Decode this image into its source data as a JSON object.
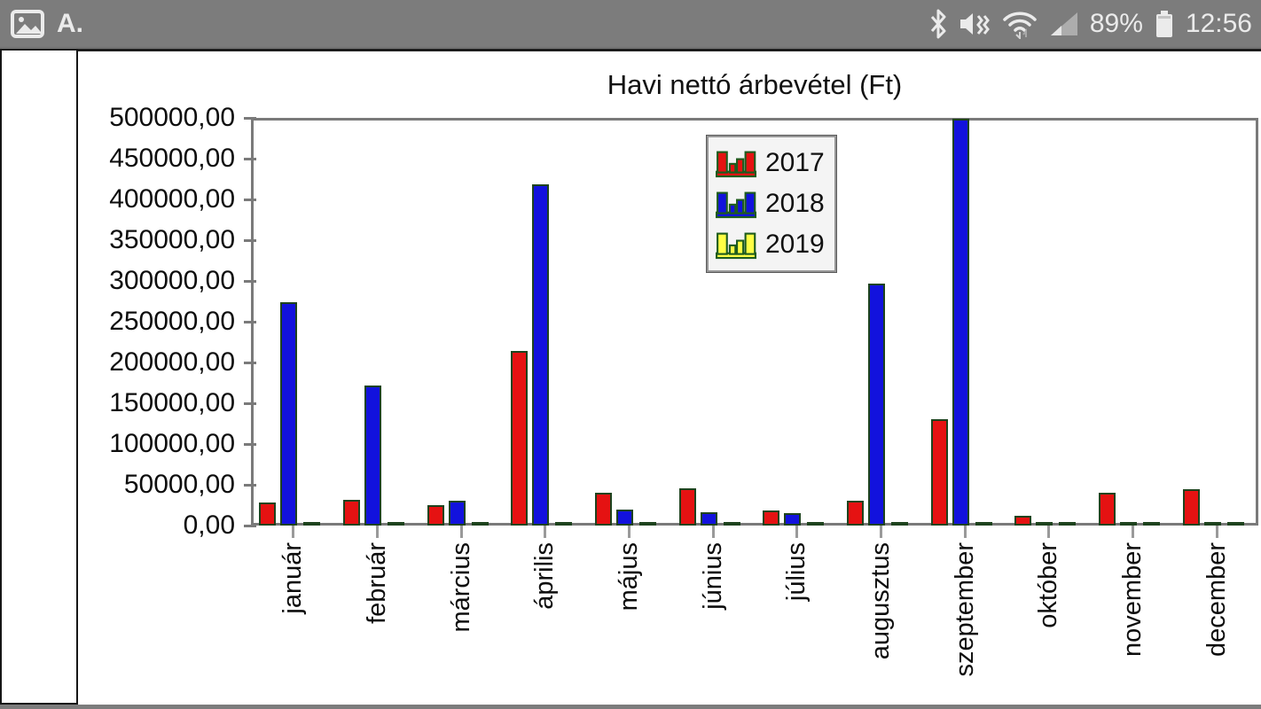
{
  "status_bar": {
    "time": "12:56",
    "battery_percent": "89%",
    "font_badge": "A.",
    "left_icons": [
      "image-icon",
      "font-icon"
    ],
    "right_icons": [
      "bluetooth-icon",
      "mute-icon",
      "wifi-icon",
      "cellular-icon",
      "battery-icon"
    ],
    "bg_color": "#7c7c7c",
    "fg_color": "#ebebeb"
  },
  "chart_data": {
    "type": "bar",
    "title": "Havi nettó árbevétel (Ft)",
    "categories": [
      "január",
      "február",
      "március",
      "április",
      "május",
      "június",
      "július",
      "augusztus",
      "szeptember",
      "október",
      "november",
      "december"
    ],
    "series": [
      {
        "name": "2017",
        "color": "#e51212",
        "values": [
          28000,
          31000,
          25000,
          214000,
          40000,
          46000,
          18000,
          30000,
          130000,
          11500,
          40000,
          45000
        ]
      },
      {
        "name": "2018",
        "color": "#1212dd",
        "values": [
          274000,
          172000,
          30000,
          418000,
          20000,
          16000,
          15000,
          297000,
          499000,
          2000,
          2000,
          2000
        ]
      },
      {
        "name": "2019",
        "color": "#ffff45",
        "values": [
          2000,
          2000,
          2000,
          2000,
          2000,
          2000,
          2000,
          2000,
          2000,
          2000,
          2000,
          2000
        ]
      }
    ],
    "ylim": [
      0,
      500000
    ],
    "ytick_step": 50000,
    "ytick_labels": [
      "500000,00",
      "450000,00",
      "400000,00",
      "350000,00",
      "300000,00",
      "250000,00",
      "200000,00",
      "150000,00",
      "100000,00",
      "50000,00",
      "0,00"
    ],
    "bar_outline_color": "#1e431e",
    "legend_position": "top-center",
    "grid": false,
    "xlabel": "",
    "ylabel": ""
  }
}
